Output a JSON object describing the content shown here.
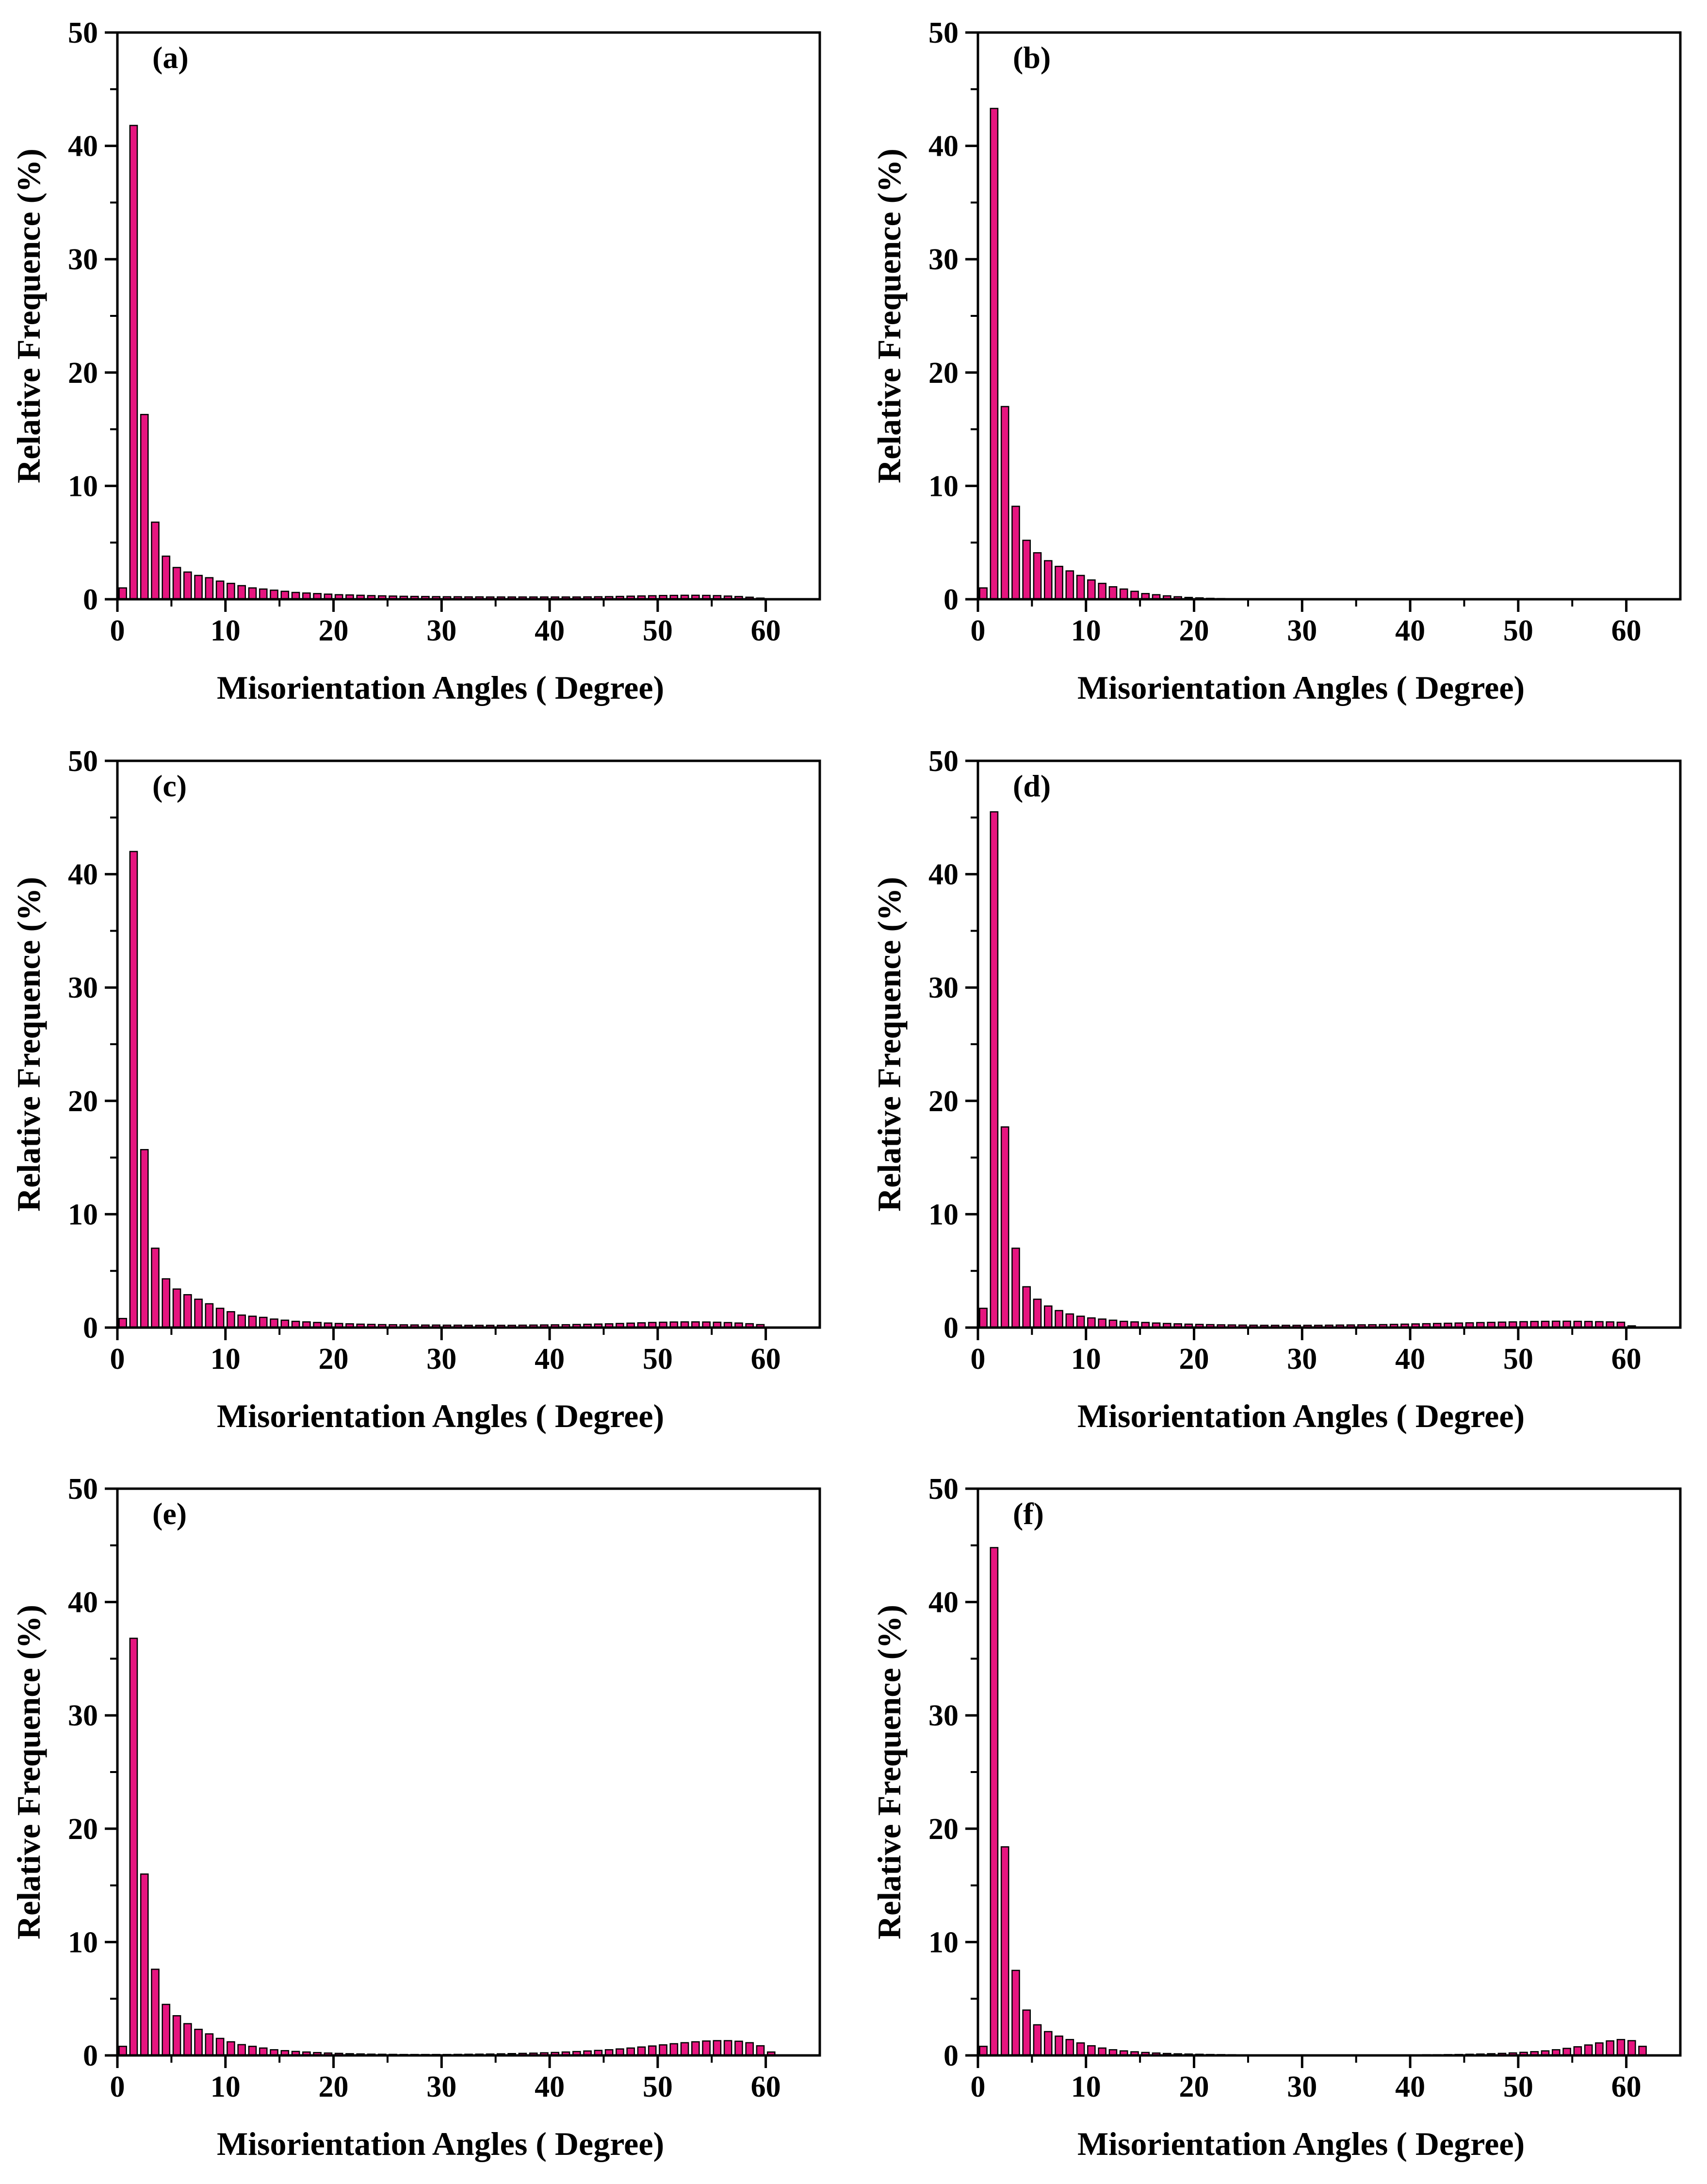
{
  "colors": {
    "bar_fill": "#E6157F",
    "bar_edge": "#000000",
    "axis": "#000000"
  },
  "chart_data": [
    {
      "type": "bar",
      "panel_label": "(a)",
      "xlabel": "Misorientation Angles ( Degree)",
      "ylabel": "Relative Frequence (%)",
      "xlim": [
        0,
        65
      ],
      "ylim": [
        0,
        50
      ],
      "xticks": [
        "0",
        "10",
        "20",
        "30",
        "40",
        "50",
        "60"
      ],
      "yticks": [
        "0",
        "10",
        "20",
        "30",
        "40",
        "50"
      ],
      "bin_width": 1,
      "x": [
        0.5,
        1.5,
        2.5,
        3.5,
        4.5,
        5.5,
        6.5,
        7.5,
        8.5,
        9.5,
        10.5,
        11.5,
        12.5,
        13.5,
        14.5,
        15.5,
        16.5,
        17.5,
        18.5,
        19.5,
        20.5,
        21.5,
        22.5,
        23.5,
        24.5,
        25.5,
        26.5,
        27.5,
        28.5,
        29.5,
        30.5,
        31.5,
        32.5,
        33.5,
        34.5,
        35.5,
        36.5,
        37.5,
        38.5,
        39.5,
        40.5,
        41.5,
        42.5,
        43.5,
        44.5,
        45.5,
        46.5,
        47.5,
        48.5,
        49.5,
        50.5,
        51.5,
        52.5,
        53.5,
        54.5,
        55.5,
        56.5,
        57.5,
        58.5,
        59.5
      ],
      "values": [
        1.0,
        41.8,
        16.3,
        6.8,
        3.8,
        2.8,
        2.4,
        2.1,
        1.9,
        1.6,
        1.4,
        1.2,
        1.0,
        0.9,
        0.8,
        0.7,
        0.6,
        0.55,
        0.5,
        0.45,
        0.4,
        0.38,
        0.35,
        0.32,
        0.3,
        0.28,
        0.26,
        0.25,
        0.24,
        0.23,
        0.22,
        0.22,
        0.21,
        0.21,
        0.2,
        0.2,
        0.2,
        0.2,
        0.2,
        0.2,
        0.2,
        0.2,
        0.2,
        0.21,
        0.22,
        0.23,
        0.25,
        0.27,
        0.29,
        0.31,
        0.33,
        0.34,
        0.35,
        0.35,
        0.34,
        0.32,
        0.28,
        0.24,
        0.18,
        0.1
      ]
    },
    {
      "type": "bar",
      "panel_label": "(b)",
      "xlabel": "Misorientation Angles ( Degree)",
      "ylabel": "Relative Frequence (%)",
      "xlim": [
        0,
        65
      ],
      "ylim": [
        0,
        50
      ],
      "xticks": [
        "0",
        "10",
        "20",
        "30",
        "40",
        "50",
        "60"
      ],
      "yticks": [
        "0",
        "10",
        "20",
        "30",
        "40",
        "50"
      ],
      "bin_width": 1,
      "x": [
        0.5,
        1.5,
        2.5,
        3.5,
        4.5,
        5.5,
        6.5,
        7.5,
        8.5,
        9.5,
        10.5,
        11.5,
        12.5,
        13.5,
        14.5,
        15.5,
        16.5,
        17.5,
        18.5,
        19.5,
        20.5,
        21.5,
        22.5,
        23.5,
        24.5,
        25.5
      ],
      "values": [
        1.0,
        43.3,
        17.0,
        8.2,
        5.2,
        4.1,
        3.4,
        2.9,
        2.5,
        2.1,
        1.7,
        1.4,
        1.1,
        0.9,
        0.7,
        0.5,
        0.4,
        0.3,
        0.22,
        0.16,
        0.12,
        0.08,
        0.06,
        0.04,
        0.03,
        0.02
      ]
    },
    {
      "type": "bar",
      "panel_label": "(c)",
      "xlabel": "Misorientation Angles ( Degree)",
      "ylabel": "Relative Frequence (%)",
      "xlim": [
        0,
        65
      ],
      "ylim": [
        0,
        50
      ],
      "xticks": [
        "0",
        "10",
        "20",
        "30",
        "40",
        "50",
        "60"
      ],
      "yticks": [
        "0",
        "10",
        "20",
        "30",
        "40",
        "50"
      ],
      "bin_width": 1,
      "x": [
        0.5,
        1.5,
        2.5,
        3.5,
        4.5,
        5.5,
        6.5,
        7.5,
        8.5,
        9.5,
        10.5,
        11.5,
        12.5,
        13.5,
        14.5,
        15.5,
        16.5,
        17.5,
        18.5,
        19.5,
        20.5,
        21.5,
        22.5,
        23.5,
        24.5,
        25.5,
        26.5,
        27.5,
        28.5,
        29.5,
        30.5,
        31.5,
        32.5,
        33.5,
        34.5,
        35.5,
        36.5,
        37.5,
        38.5,
        39.5,
        40.5,
        41.5,
        42.5,
        43.5,
        44.5,
        45.5,
        46.5,
        47.5,
        48.5,
        49.5,
        50.5,
        51.5,
        52.5,
        53.5,
        54.5,
        55.5,
        56.5,
        57.5,
        58.5,
        59.5
      ],
      "values": [
        0.8,
        42.0,
        15.7,
        7.0,
        4.3,
        3.4,
        2.9,
        2.5,
        2.1,
        1.7,
        1.4,
        1.1,
        1.0,
        0.9,
        0.75,
        0.65,
        0.55,
        0.5,
        0.45,
        0.4,
        0.36,
        0.33,
        0.3,
        0.28,
        0.26,
        0.25,
        0.24,
        0.23,
        0.22,
        0.22,
        0.21,
        0.21,
        0.2,
        0.2,
        0.2,
        0.2,
        0.2,
        0.21,
        0.22,
        0.23,
        0.24,
        0.25,
        0.27,
        0.29,
        0.31,
        0.33,
        0.36,
        0.39,
        0.42,
        0.45,
        0.47,
        0.49,
        0.5,
        0.5,
        0.49,
        0.47,
        0.44,
        0.4,
        0.34,
        0.26
      ]
    },
    {
      "type": "bar",
      "panel_label": "(d)",
      "xlabel": "Misorientation Angles ( Degree)",
      "ylabel": "Relative Frequence (%)",
      "xlim": [
        0,
        65
      ],
      "ylim": [
        0,
        50
      ],
      "xticks": [
        "0",
        "10",
        "20",
        "30",
        "40",
        "50",
        "60"
      ],
      "yticks": [
        "0",
        "10",
        "20",
        "30",
        "40",
        "50"
      ],
      "bin_width": 1,
      "x": [
        0.5,
        1.5,
        2.5,
        3.5,
        4.5,
        5.5,
        6.5,
        7.5,
        8.5,
        9.5,
        10.5,
        11.5,
        12.5,
        13.5,
        14.5,
        15.5,
        16.5,
        17.5,
        18.5,
        19.5,
        20.5,
        21.5,
        22.5,
        23.5,
        24.5,
        25.5,
        26.5,
        27.5,
        28.5,
        29.5,
        30.5,
        31.5,
        32.5,
        33.5,
        34.5,
        35.5,
        36.5,
        37.5,
        38.5,
        39.5,
        40.5,
        41.5,
        42.5,
        43.5,
        44.5,
        45.5,
        46.5,
        47.5,
        48.5,
        49.5,
        50.5,
        51.5,
        52.5,
        53.5,
        54.5,
        55.5,
        56.5,
        57.5,
        58.5,
        59.5,
        60.5
      ],
      "values": [
        1.7,
        45.5,
        17.7,
        7.0,
        3.6,
        2.5,
        1.9,
        1.5,
        1.2,
        1.0,
        0.85,
        0.75,
        0.65,
        0.55,
        0.5,
        0.45,
        0.4,
        0.36,
        0.33,
        0.3,
        0.28,
        0.26,
        0.24,
        0.23,
        0.22,
        0.21,
        0.2,
        0.2,
        0.2,
        0.2,
        0.2,
        0.2,
        0.21,
        0.22,
        0.23,
        0.24,
        0.25,
        0.26,
        0.28,
        0.3,
        0.32,
        0.34,
        0.36,
        0.38,
        0.4,
        0.42,
        0.44,
        0.46,
        0.48,
        0.5,
        0.52,
        0.54,
        0.55,
        0.56,
        0.56,
        0.55,
        0.54,
        0.52,
        0.5,
        0.47,
        0.15
      ]
    },
    {
      "type": "bar",
      "panel_label": "(e)",
      "xlabel": "Misorientation Angles ( Degree)",
      "ylabel": "Relative Frequence (%)",
      "xlim": [
        0,
        65
      ],
      "ylim": [
        0,
        50
      ],
      "xticks": [
        "0",
        "10",
        "20",
        "30",
        "40",
        "50",
        "60"
      ],
      "yticks": [
        "0",
        "10",
        "20",
        "30",
        "40",
        "50"
      ],
      "bin_width": 1,
      "x": [
        0.5,
        1.5,
        2.5,
        3.5,
        4.5,
        5.5,
        6.5,
        7.5,
        8.5,
        9.5,
        10.5,
        11.5,
        12.5,
        13.5,
        14.5,
        15.5,
        16.5,
        17.5,
        18.5,
        19.5,
        20.5,
        21.5,
        22.5,
        23.5,
        24.5,
        25.5,
        26.5,
        27.5,
        28.5,
        29.5,
        30.5,
        31.5,
        32.5,
        33.5,
        34.5,
        35.5,
        36.5,
        37.5,
        38.5,
        39.5,
        40.5,
        41.5,
        42.5,
        43.5,
        44.5,
        45.5,
        46.5,
        47.5,
        48.5,
        49.5,
        50.5,
        51.5,
        52.5,
        53.5,
        54.5,
        55.5,
        56.5,
        57.5,
        58.5,
        59.5,
        60.5
      ],
      "values": [
        0.8,
        36.8,
        16.0,
        7.6,
        4.5,
        3.5,
        2.8,
        2.3,
        1.9,
        1.5,
        1.2,
        0.95,
        0.8,
        0.65,
        0.5,
        0.42,
        0.35,
        0.3,
        0.25,
        0.21,
        0.18,
        0.15,
        0.13,
        0.11,
        0.1,
        0.09,
        0.08,
        0.08,
        0.08,
        0.08,
        0.08,
        0.09,
        0.1,
        0.11,
        0.12,
        0.14,
        0.16,
        0.18,
        0.2,
        0.23,
        0.26,
        0.3,
        0.34,
        0.39,
        0.44,
        0.5,
        0.57,
        0.65,
        0.74,
        0.83,
        0.93,
        1.03,
        1.12,
        1.2,
        1.27,
        1.3,
        1.3,
        1.25,
        1.12,
        0.85,
        0.3
      ]
    },
    {
      "type": "bar",
      "panel_label": "(f)",
      "xlabel": "Misorientation Angles ( Degree)",
      "ylabel": "Relative Frequence (%)",
      "xlim": [
        0,
        65
      ],
      "ylim": [
        0,
        50
      ],
      "xticks": [
        "0",
        "10",
        "20",
        "30",
        "40",
        "50",
        "60"
      ],
      "yticks": [
        "0",
        "10",
        "20",
        "30",
        "40",
        "50"
      ],
      "bin_width": 1,
      "x": [
        0.5,
        1.5,
        2.5,
        3.5,
        4.5,
        5.5,
        6.5,
        7.5,
        8.5,
        9.5,
        10.5,
        11.5,
        12.5,
        13.5,
        14.5,
        15.5,
        16.5,
        17.5,
        18.5,
        19.5,
        20.5,
        21.5,
        22.5,
        23.5,
        24.5,
        25.5,
        26.5,
        27.5,
        28.5,
        29.5,
        30.5,
        31.5,
        32.5,
        33.5,
        34.5,
        35.5,
        36.5,
        37.5,
        38.5,
        39.5,
        40.5,
        41.5,
        42.5,
        43.5,
        44.5,
        45.5,
        46.5,
        47.5,
        48.5,
        49.5,
        50.5,
        51.5,
        52.5,
        53.5,
        54.5,
        55.5,
        56.5,
        57.5,
        58.5,
        59.5,
        60.5,
        61.5
      ],
      "values": [
        0.8,
        44.8,
        18.4,
        7.5,
        4.0,
        2.7,
        2.1,
        1.7,
        1.4,
        1.1,
        0.85,
        0.65,
        0.5,
        0.4,
        0.32,
        0.26,
        0.21,
        0.17,
        0.14,
        0.12,
        0.1,
        0.08,
        0.07,
        0.06,
        0.05,
        0.05,
        0.04,
        0.04,
        0.04,
        0.04,
        0.04,
        0.04,
        0.04,
        0.04,
        0.04,
        0.04,
        0.04,
        0.04,
        0.05,
        0.05,
        0.05,
        0.06,
        0.06,
        0.07,
        0.08,
        0.1,
        0.12,
        0.15,
        0.18,
        0.22,
        0.27,
        0.33,
        0.4,
        0.5,
        0.62,
        0.76,
        0.92,
        1.1,
        1.28,
        1.4,
        1.3,
        0.8
      ]
    }
  ]
}
